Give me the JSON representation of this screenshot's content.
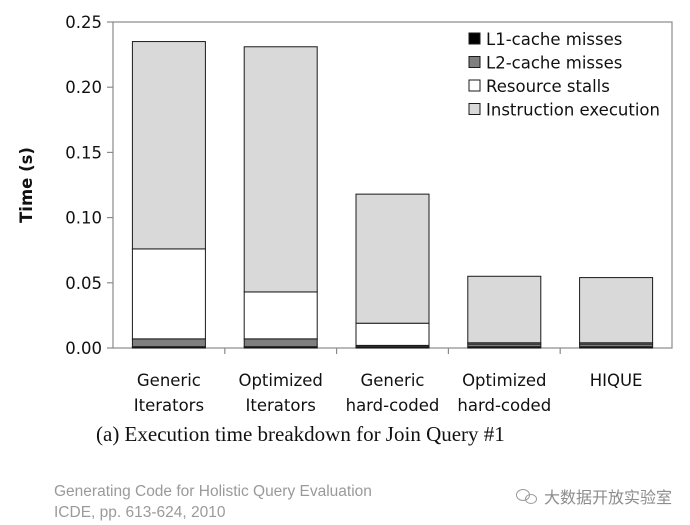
{
  "chart_data": {
    "type": "bar",
    "stacked": true,
    "ylabel": "Time (s)",
    "ylim": [
      0,
      0.25
    ],
    "yticks": [
      "0.00",
      "0.05",
      "0.10",
      "0.15",
      "0.20",
      "0.25"
    ],
    "ytick_values": [
      0,
      0.05,
      0.1,
      0.15,
      0.2,
      0.25
    ],
    "categories": [
      [
        "Generic",
        "Iterators"
      ],
      [
        "Optimized",
        "Iterators"
      ],
      [
        "Generic",
        "hard-coded"
      ],
      [
        "Optimized",
        "hard-coded"
      ],
      [
        "HIQUE"
      ]
    ],
    "series": [
      {
        "name": "L1-cache misses",
        "color": "#000000",
        "values": [
          0.001,
          0.001,
          0.001,
          0.001,
          0.001
        ]
      },
      {
        "name": "L2-cache misses",
        "color": "#7f7f7f",
        "values": [
          0.006,
          0.006,
          0.001,
          0.002,
          0.002
        ]
      },
      {
        "name": "Resource stalls",
        "color": "#ffffff",
        "values": [
          0.069,
          0.036,
          0.017,
          0.001,
          0.001
        ]
      },
      {
        "name": "Instruction execution",
        "color": "#d9d9d9",
        "values": [
          0.159,
          0.188,
          0.099,
          0.051,
          0.05
        ]
      }
    ],
    "legend_order": [
      "L1-cache misses",
      "L2-cache misses",
      "Resource stalls",
      "Instruction execution"
    ],
    "legend_position": "top-right",
    "grid": false
  },
  "caption": "(a) Execution time breakdown for Join Query #1",
  "source": {
    "title": "Generating Code for Holistic Query Evaluation",
    "venue": "ICDE, pp. 613-624, 2010"
  },
  "watermark": "大数据开放实验室"
}
